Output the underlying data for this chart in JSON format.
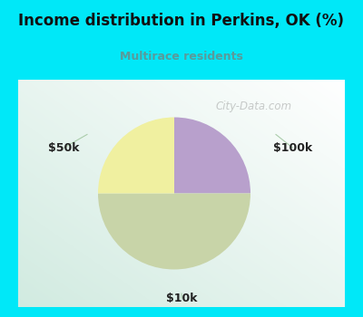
{
  "title": "Income distribution in Perkins, OK (%)",
  "subtitle": "Multirace residents",
  "title_color": "#111111",
  "subtitle_color": "#5a9a9a",
  "bg_color": "#00e8f8",
  "chart_panel_color": "#e8f5ee",
  "slices": [
    {
      "label": "$100k",
      "value": 25,
      "color": "#b8a0cc"
    },
    {
      "label": "$10k",
      "value": 50,
      "color": "#c8d4a8"
    },
    {
      "label": "$50k",
      "value": 25,
      "color": "#f0f0a0"
    }
  ],
  "start_angle": 90,
  "counterclock": false,
  "watermark": "City-Data.com",
  "label_fontsize": 9,
  "label_color": "#222222",
  "leader_color": "#aaccaa"
}
